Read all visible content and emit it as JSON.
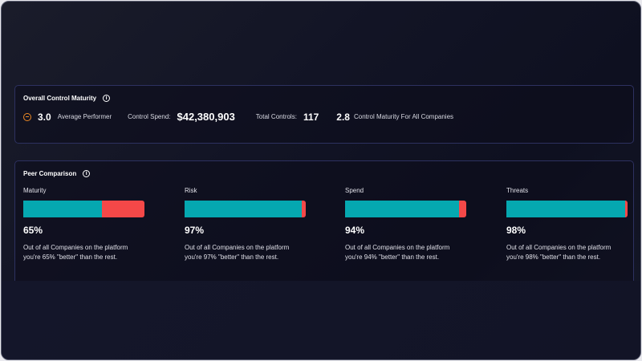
{
  "overall": {
    "title": "Overall Control Maturity",
    "score": "3.0",
    "score_label": "Average Performer",
    "spend_label": "Control Spend:",
    "spend_value": "$42,380,903",
    "controls_label": "Total Controls:",
    "controls_value": "117",
    "all_score": "2.8",
    "all_label": "Control Maturity For All Companies"
  },
  "peer": {
    "title": "Peer Comparison",
    "colors": {
      "better": "#05a8b0",
      "rest": "#f44848"
    },
    "items": [
      {
        "label": "Maturity",
        "percent": 65,
        "percent_text": "65%",
        "line1": "Out of all Companies on the platform",
        "line2": "you're 65% \"better\" than the rest."
      },
      {
        "label": "Risk",
        "percent": 97,
        "percent_text": "97%",
        "line1": "Out of all Companies on the platform",
        "line2": "you're 97% \"better\" than the rest."
      },
      {
        "label": "Spend",
        "percent": 94,
        "percent_text": "94%",
        "line1": "Out of all Companies on the platform",
        "line2": "you're 94% \"better\" than the rest."
      },
      {
        "label": "Threats",
        "percent": 98,
        "percent_text": "98%",
        "line1": "Out of all Companies on the platform",
        "line2": "you're 98% \"better\" than the rest."
      }
    ]
  }
}
